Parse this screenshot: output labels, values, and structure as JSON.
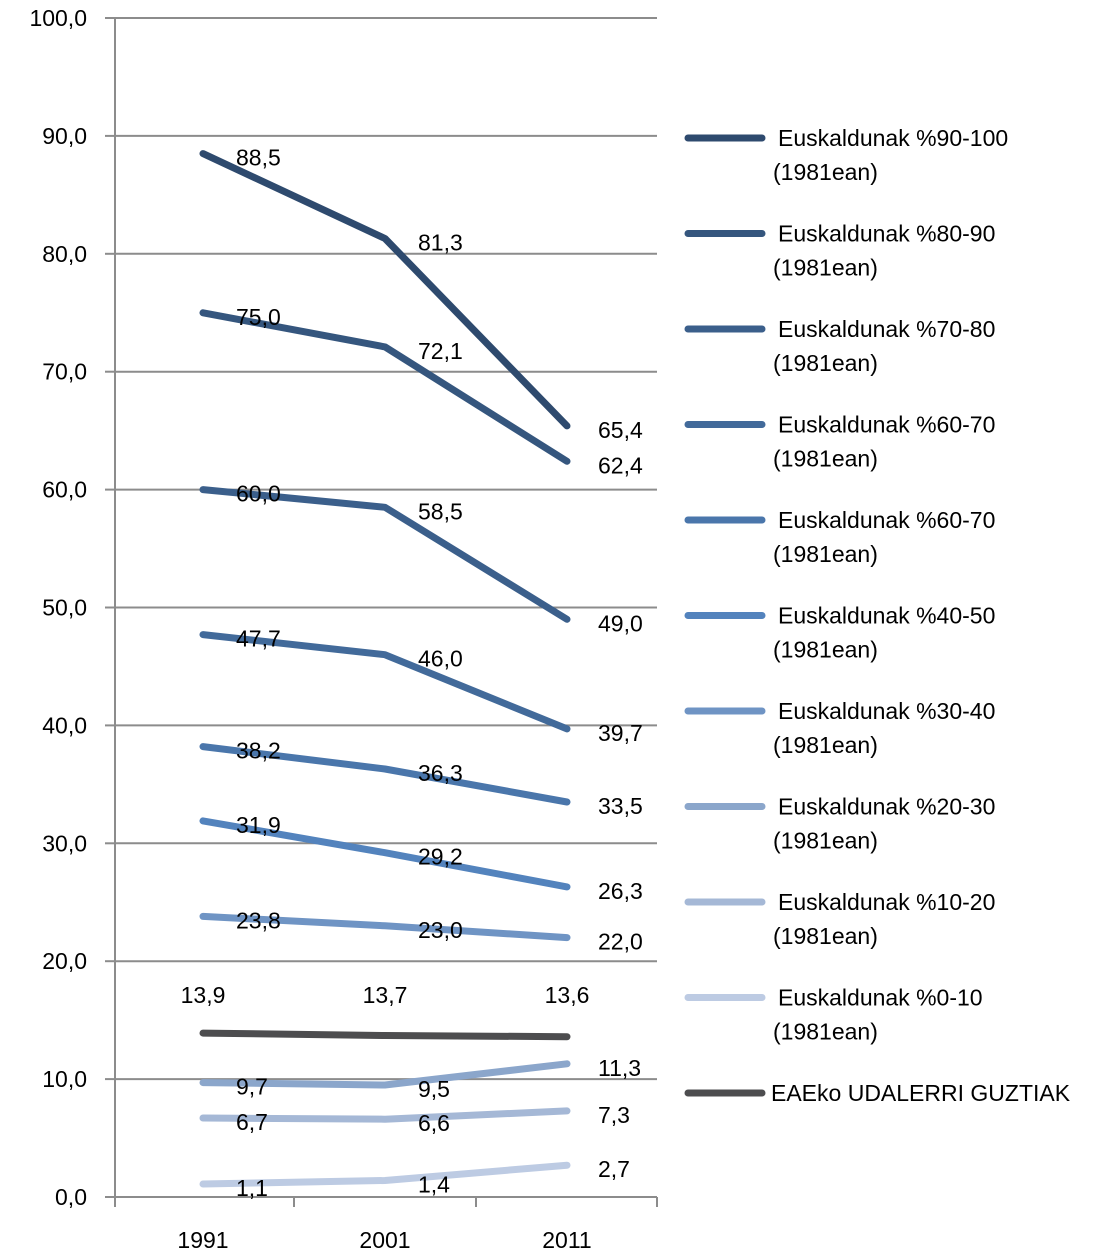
{
  "chart_data": {
    "type": "line",
    "x": [
      "1991",
      "2001",
      "2011"
    ],
    "ylim": [
      0,
      100
    ],
    "y_ticks": [
      "0,0",
      "10,0",
      "20,0",
      "30,0",
      "40,0",
      "50,0",
      "60,0",
      "70,0",
      "80,0",
      "90,0",
      "100,0"
    ],
    "grid": true,
    "legend_position": "right",
    "series": [
      {
        "name": "Euskaldunak %90-100 (1981ean)",
        "legend_lines": [
          "Euskaldunak %90-100",
          "(1981ean)"
        ],
        "color": "#2e4a6e",
        "values": [
          88.5,
          81.3,
          65.4
        ],
        "labels": [
          "88,5",
          "81,3",
          "65,4"
        ]
      },
      {
        "name": "Euskaldunak %80-90 (1981ean)",
        "legend_lines": [
          "Euskaldunak %80-90",
          "(1981ean)"
        ],
        "color": "#35567e",
        "values": [
          75.0,
          72.1,
          62.4
        ],
        "labels": [
          "75,0",
          "72,1",
          "62,4"
        ]
      },
      {
        "name": "Euskaldunak %70-80 (1981ean)",
        "legend_lines": [
          "Euskaldunak %70-80",
          "(1981ean)"
        ],
        "color": "#3b5f8b",
        "values": [
          60.0,
          58.5,
          49.0
        ],
        "labels": [
          "60,0",
          "58,5",
          "49,0"
        ]
      },
      {
        "name": "Euskaldunak %60-70 (1981ean)",
        "legend_lines": [
          "Euskaldunak %60-70",
          "(1981ean)"
        ],
        "color": "#426a9a",
        "values": [
          47.7,
          46.0,
          39.7
        ],
        "labels": [
          "47,7",
          "46,0",
          "39,7"
        ]
      },
      {
        "name": "Euskaldunak %60-70 (1981ean)",
        "legend_lines": [
          "Euskaldunak %60-70",
          "(1981ean)"
        ],
        "color": "#4a76ab",
        "values": [
          38.2,
          36.3,
          33.5
        ],
        "labels": [
          "38,2",
          "36,3",
          "33,5"
        ]
      },
      {
        "name": "Euskaldunak %40-50 (1981ean)",
        "legend_lines": [
          "Euskaldunak %40-50",
          "(1981ean)"
        ],
        "color": "#5383bd",
        "values": [
          31.9,
          29.2,
          26.3
        ],
        "labels": [
          "31,9",
          "29,2",
          "26,3"
        ]
      },
      {
        "name": "Euskaldunak %30-40 (1981ean)",
        "legend_lines": [
          "Euskaldunak %30-40",
          "(1981ean)"
        ],
        "color": "#6f94c4",
        "values": [
          23.8,
          23.0,
          22.0
        ],
        "labels": [
          "23,8",
          "23,0",
          "22,0"
        ]
      },
      {
        "name": "Euskaldunak %20-30 (1981ean)",
        "legend_lines": [
          "Euskaldunak %20-30",
          "(1981ean)"
        ],
        "color": "#8ba6cb",
        "values": [
          9.7,
          9.5,
          11.3
        ],
        "labels": [
          "9,7",
          "9,5",
          "11,3"
        ]
      },
      {
        "name": "Euskaldunak %10-20 (1981ean)",
        "legend_lines": [
          "Euskaldunak %10-20",
          "(1981ean)"
        ],
        "color": "#a5b8d6",
        "values": [
          6.7,
          6.6,
          7.3
        ],
        "labels": [
          "6,7",
          "6,6",
          "7,3"
        ]
      },
      {
        "name": "Euskaldunak %0-10 (1981ean)",
        "legend_lines": [
          "Euskaldunak %0-10",
          "(1981ean)"
        ],
        "color": "#bdcbe3",
        "values": [
          1.1,
          1.4,
          2.7
        ],
        "labels": [
          "1,1",
          "1,4",
          "2,7"
        ]
      },
      {
        "name": "EAEko UDALERRI GUZTIAK",
        "legend_lines": [
          "EAEko UDALERRI GUZTIAK"
        ],
        "color": "#4d4d4f",
        "values": [
          13.9,
          13.7,
          13.6
        ],
        "labels": [
          "13,9",
          "13,7",
          "13,6"
        ]
      }
    ]
  }
}
